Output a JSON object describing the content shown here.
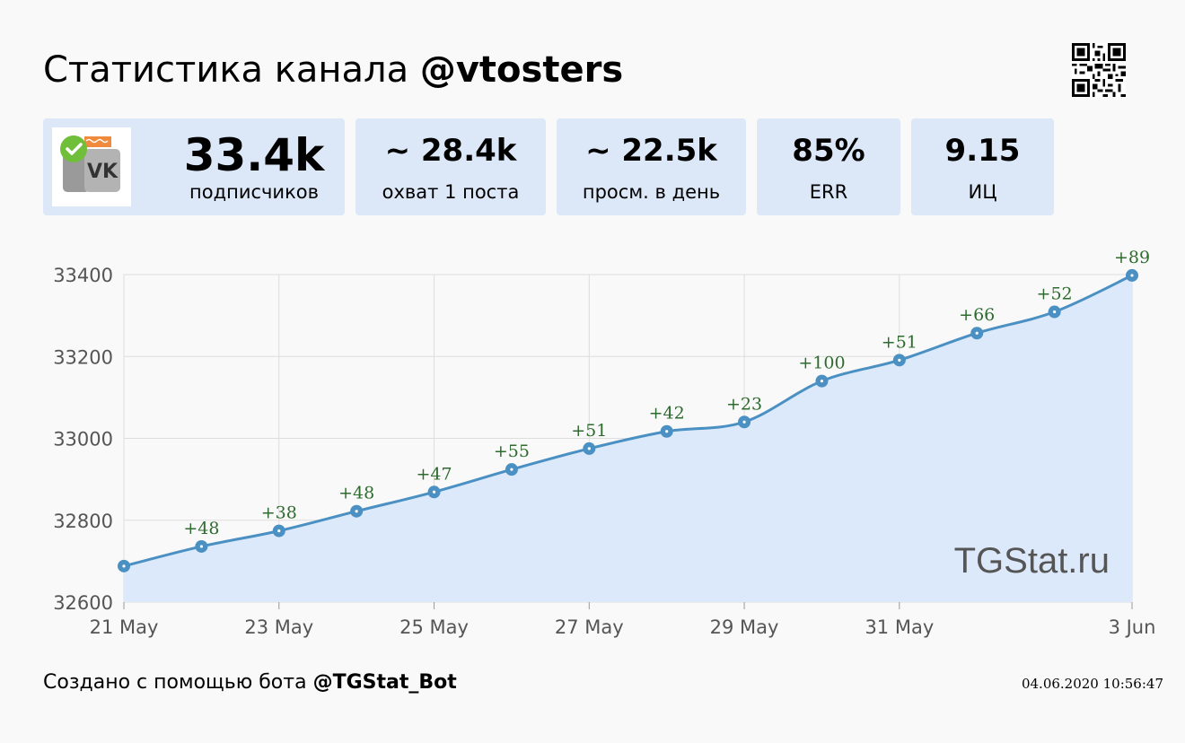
{
  "header": {
    "title_prefix": "Статистика канала",
    "channel": "@vtosters",
    "qr_icon": "qr-code-icon"
  },
  "stats": [
    {
      "value": "33.4k",
      "label": "подписчиков"
    },
    {
      "value": "~ 28.4k",
      "label": "охват 1 поста"
    },
    {
      "value": "~ 22.5k",
      "label": "просм. в день"
    },
    {
      "value": "85%",
      "label": "ERR"
    },
    {
      "value": "9.15",
      "label": "ИЦ"
    }
  ],
  "avatar": {
    "icon": "vk-channel-avatar-icon",
    "text": "VK"
  },
  "chart_data": {
    "type": "area",
    "x": [
      "21 May",
      "22 May",
      "23 May",
      "24 May",
      "25 May",
      "26 May",
      "27 May",
      "28 May",
      "29 May",
      "30 May",
      "31 May",
      "1 Jun",
      "2 Jun",
      "3 Jun"
    ],
    "x_tick_labels": [
      "21 May",
      "23 May",
      "25 May",
      "27 May",
      "29 May",
      "31 May",
      "3 Jun"
    ],
    "values": [
      32688,
      32736,
      32774,
      32822,
      32869,
      32924,
      32975,
      33017,
      33040,
      33140,
      33191,
      33257,
      33309,
      33398
    ],
    "data_labels": [
      "",
      "+48",
      "+38",
      "+48",
      "+47",
      "+55",
      "+51",
      "+42",
      "+23",
      "+100",
      "+51",
      "+66",
      "+52",
      "+89"
    ],
    "y_ticks": [
      32600,
      32800,
      33000,
      33200,
      33400
    ],
    "ylim": [
      32600,
      33400
    ],
    "grid": true,
    "line_color": "#4a90c2",
    "fill_color": "#dce9fa",
    "label_color": "#2e6b2e"
  },
  "watermark": "TGStat.ru",
  "footer": {
    "prefix": "Создано с помощью бота",
    "bot": "@TGStat_Bot",
    "timestamp": "04.06.2020 10:56:47"
  }
}
